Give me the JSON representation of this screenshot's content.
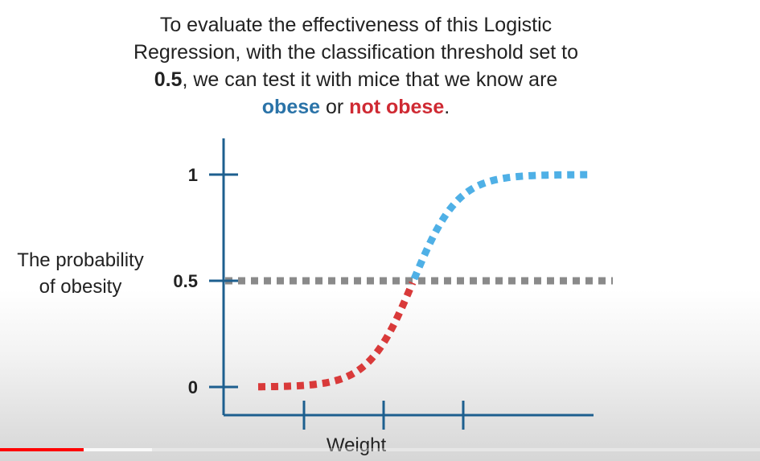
{
  "caption": {
    "line1": "To evaluate the effectiveness of this Logistic",
    "line2": "Regression, with the classification threshold set to",
    "line3_bold": "0.5",
    "line3_rest": ", we can test it with mice that we know are",
    "line4_blue": "obese",
    "line4_mid": " or ",
    "line4_red": "not obese",
    "line4_end": "."
  },
  "chart_data": {
    "type": "line",
    "ylabel_line1": "The probability",
    "ylabel_line2": "of obesity",
    "xlabel": "Weight",
    "yticks": [
      "0",
      "0.5",
      "1"
    ],
    "ylim": [
      0,
      1
    ],
    "threshold": 0.5,
    "curve": "logistic",
    "x_tick_count": 3,
    "series": [
      {
        "name": "",
        "color": "#d93a3a",
        "style": "dotted",
        "segment": "below threshold"
      },
      {
        "name": "",
        "color": "#4fb0e6",
        "style": "dotted",
        "segment": "above threshold"
      }
    ],
    "threshold_line": {
      "color": "#8a8a8a",
      "style": "dotted"
    }
  },
  "colors": {
    "axis": "#1d5f8f",
    "obese": "#2a73a8",
    "not_obese": "#cf2a33"
  },
  "player": {
    "played_fraction": 0.11,
    "loaded_fraction": 0.2
  }
}
